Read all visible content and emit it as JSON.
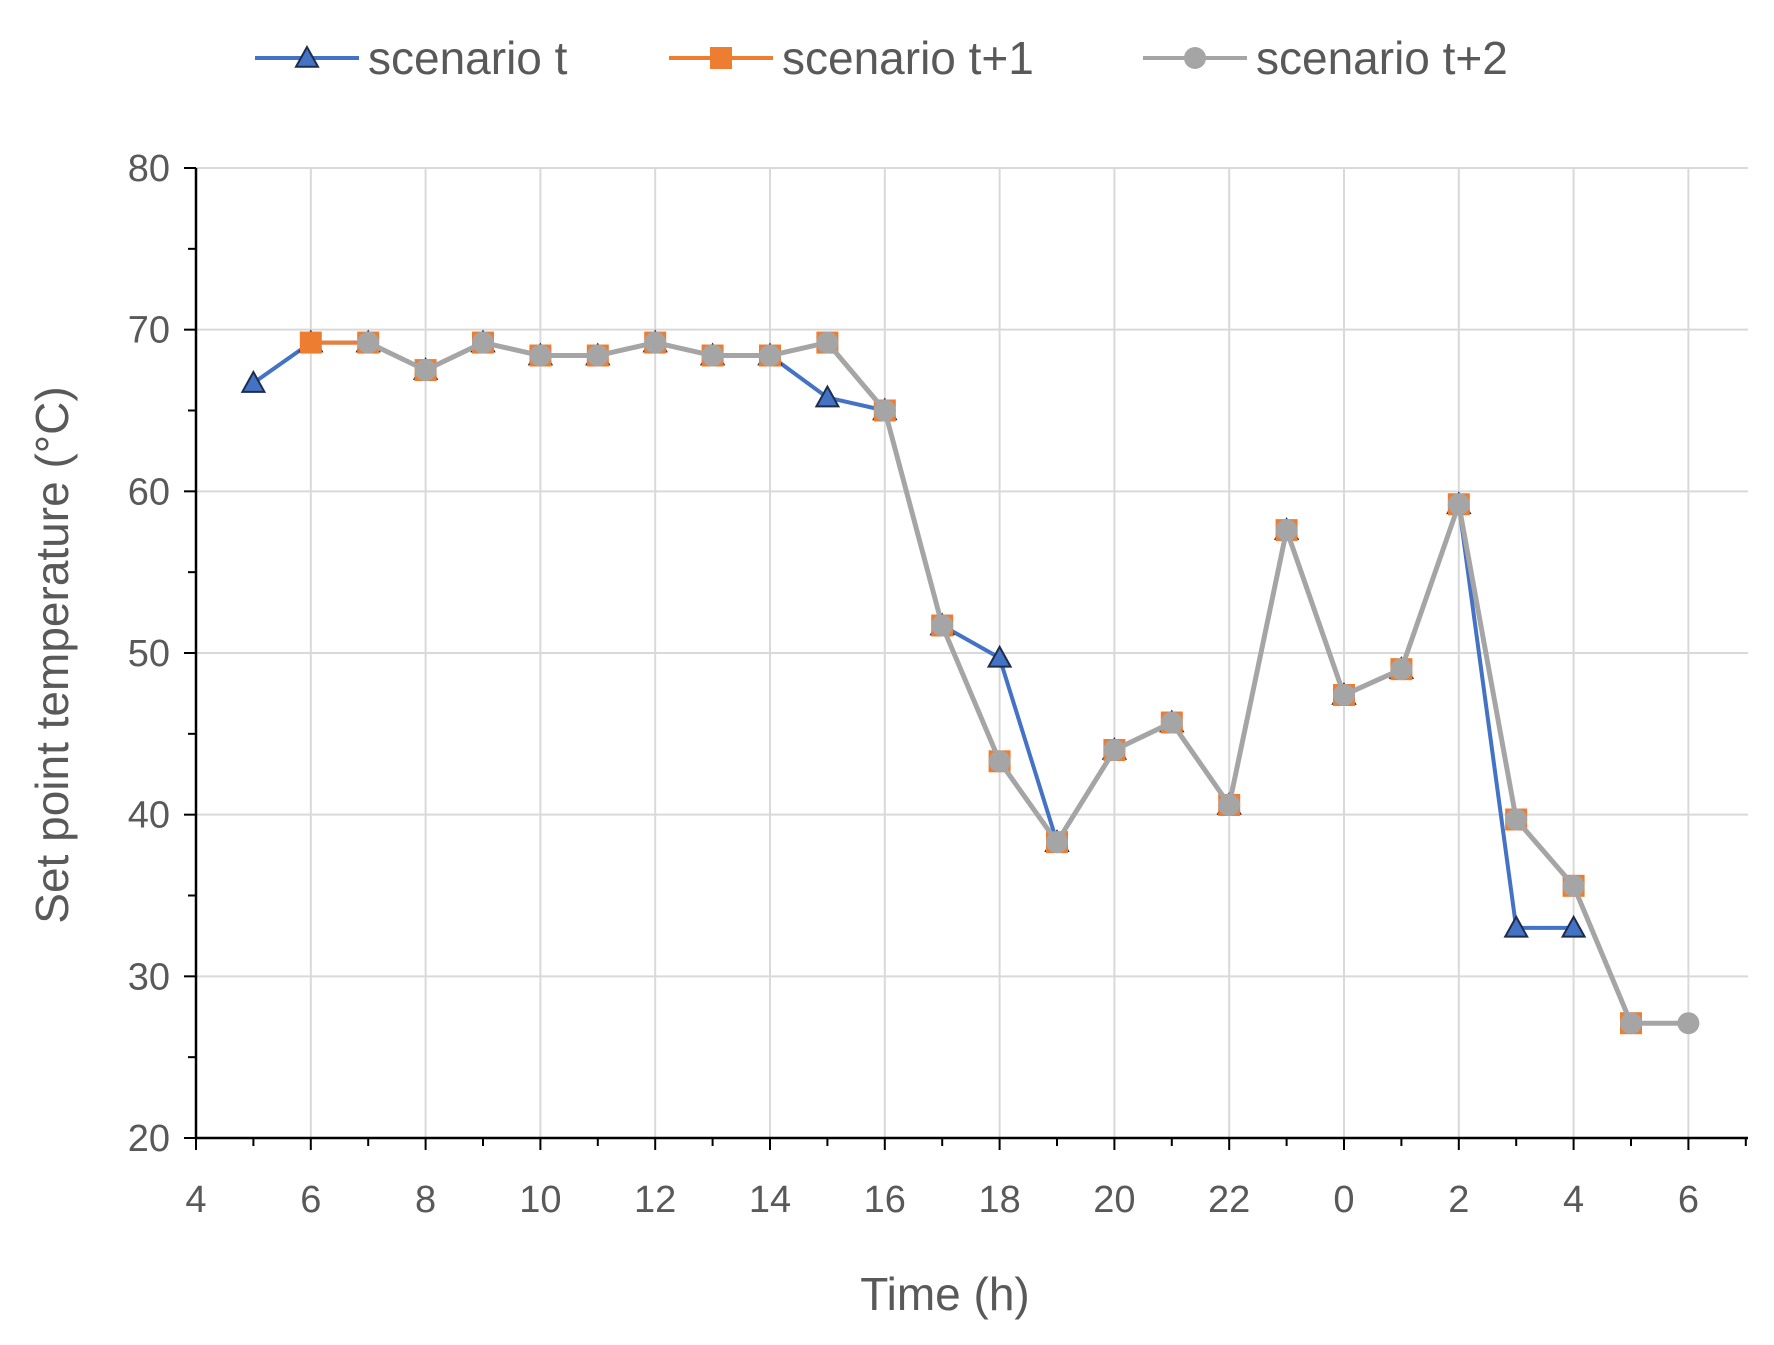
{
  "chart_data": {
    "type": "line",
    "xlabel": "Time (h)",
    "ylabel": "Set point temperature  (°C)",
    "ylim": [
      20,
      80
    ],
    "yticks": [
      "20",
      "30",
      "40",
      "50",
      "60",
      "70",
      "80"
    ],
    "xticks": [
      "4",
      "6",
      "8",
      "10",
      "12",
      "14",
      "16",
      "18",
      "20",
      "22",
      "0",
      "2",
      "4",
      "6"
    ],
    "x_range_hours": [
      4,
      31
    ],
    "grid": true,
    "legend_position": "top",
    "series": [
      {
        "name": "scenario t",
        "color": "#4472c4",
        "marker": "triangle",
        "x": [
          5,
          6,
          7,
          8,
          9,
          10,
          11,
          12,
          13,
          14,
          15,
          16,
          17,
          18,
          19,
          20,
          21,
          22,
          23,
          24,
          25,
          26,
          27,
          28
        ],
        "values": [
          66.7,
          69.2,
          69.2,
          67.5,
          69.2,
          68.4,
          68.4,
          69.2,
          68.4,
          68.4,
          65.8,
          65.0,
          51.7,
          49.7,
          38.3,
          44.0,
          45.7,
          40.6,
          57.6,
          47.4,
          49.0,
          59.2,
          33.0,
          33.0
        ]
      },
      {
        "name": "scenario t+1",
        "color": "#ed7d31",
        "marker": "square",
        "x": [
          6,
          7,
          8,
          9,
          10,
          11,
          12,
          13,
          14,
          15,
          16,
          17,
          18,
          19,
          20,
          21,
          22,
          23,
          24,
          25,
          26,
          27,
          28,
          29
        ],
        "values": [
          69.2,
          69.2,
          67.5,
          69.2,
          68.4,
          68.4,
          69.2,
          68.4,
          68.4,
          69.2,
          65.0,
          51.7,
          43.3,
          38.3,
          44.0,
          45.7,
          40.6,
          57.6,
          47.4,
          49.0,
          59.2,
          39.7,
          35.6,
          27.1
        ]
      },
      {
        "name": "scenario t+2",
        "color": "#a5a5a5",
        "marker": "circle",
        "x": [
          7,
          8,
          9,
          10,
          11,
          12,
          13,
          14,
          15,
          16,
          17,
          18,
          19,
          20,
          21,
          22,
          23,
          24,
          25,
          26,
          27,
          28,
          29,
          30
        ],
        "values": [
          69.2,
          67.5,
          69.2,
          68.4,
          68.4,
          69.2,
          68.4,
          68.4,
          69.2,
          65.0,
          51.7,
          43.3,
          38.3,
          44.0,
          45.7,
          40.6,
          57.6,
          47.4,
          49.0,
          59.2,
          39.7,
          35.6,
          27.1,
          27.1
        ]
      }
    ]
  }
}
